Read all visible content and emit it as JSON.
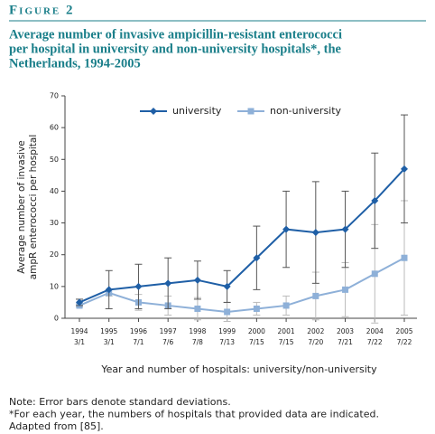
{
  "chart_data": {
    "type": "line",
    "figure_label": "Figure 2",
    "title_lines": [
      "Average number of invasive ampicillin-resistant enterococci",
      "per hospital in university and non-university hospitals*, the",
      "Netherlands, 1994-2005"
    ],
    "categories": [
      "1994",
      "1995",
      "1996",
      "1997",
      "1998",
      "1999",
      "2000",
      "2001",
      "2002",
      "2003",
      "2004",
      "2005"
    ],
    "category_sublabels": [
      "3/1",
      "3/1",
      "7/1",
      "7/6",
      "7/8",
      "7/13",
      "7/15",
      "7/15",
      "7/20",
      "7/21",
      "7/22",
      "7/22"
    ],
    "series": [
      {
        "name": "university",
        "color": "#1f5fa6",
        "marker": "diamond",
        "error_color": "#555555",
        "values": [
          5,
          9,
          10,
          11,
          12,
          10,
          19,
          28,
          27,
          28,
          37,
          47
        ],
        "errors": [
          1,
          6,
          7,
          8,
          6,
          5,
          10,
          12,
          16,
          12,
          15,
          17
        ]
      },
      {
        "name": "non-university",
        "color": "#8eb0d8",
        "marker": "square",
        "error_color": "#bbbbbb",
        "values": [
          4,
          8,
          5,
          4,
          3,
          2,
          3,
          4,
          7,
          9,
          14,
          19
        ],
        "errors": [
          0.5,
          1,
          2.5,
          3,
          3.5,
          3,
          2,
          3,
          7.5,
          8.5,
          15.5,
          18
        ]
      }
    ],
    "ylim": [
      0,
      70
    ],
    "yticks": [
      0,
      10,
      20,
      30,
      40,
      50,
      60,
      70
    ],
    "y_label_lines": [
      "Average number of invasive",
      "ampR enterococci per hospital"
    ],
    "x_label": "Year and number of hospitals: university/non-university",
    "notes": [
      "Note: Error bars denote standard deviations.",
      "*For each year, the numbers of hospitals that provided data are indicated.",
      "Adapted from [85]."
    ]
  }
}
